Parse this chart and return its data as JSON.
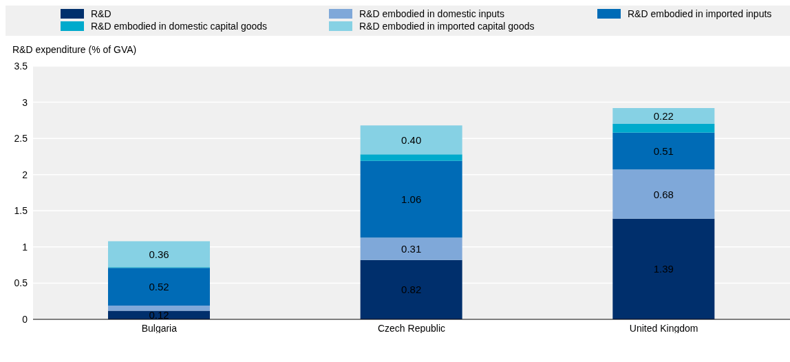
{
  "chart_data": {
    "type": "bar",
    "stacked": true,
    "ylabel": "R&D expenditure (% of GVA)",
    "categories": [
      "Bulgaria",
      "Czech Republic",
      "United Kingdom"
    ],
    "ylim": [
      0,
      3.5
    ],
    "yticks": [
      0,
      0.5,
      1,
      1.5,
      2,
      2.5,
      3,
      3.5
    ],
    "grid": "y",
    "legend": "top",
    "series": [
      {
        "name": "R&D",
        "color": "#002f6c",
        "values": [
          0.12,
          0.82,
          1.39
        ],
        "value_labels": [
          "0.12",
          "0.82",
          "1.39"
        ]
      },
      {
        "name": "R&D embodied in domestic inputs",
        "color": "#7fa8d9",
        "values": [
          0.07,
          0.31,
          0.68
        ],
        "value_labels": [
          null,
          "0.31",
          "0.68"
        ]
      },
      {
        "name": "R&D embodied in imported inputs",
        "color": "#006bb6",
        "values": [
          0.52,
          1.06,
          0.51
        ],
        "value_labels": [
          "0.52",
          "1.06",
          "0.51"
        ]
      },
      {
        "name": "R&D embodied in domestic capital goods",
        "color": "#00aacc",
        "values": [
          0.01,
          0.09,
          0.12
        ],
        "value_labels": [
          null,
          null,
          null
        ]
      },
      {
        "name": "R&D embodied in imported capital goods",
        "color": "#86d1e4",
        "values": [
          0.36,
          0.4,
          0.22
        ],
        "value_labels": [
          "0.36",
          "0.40",
          "0.22"
        ]
      }
    ]
  }
}
